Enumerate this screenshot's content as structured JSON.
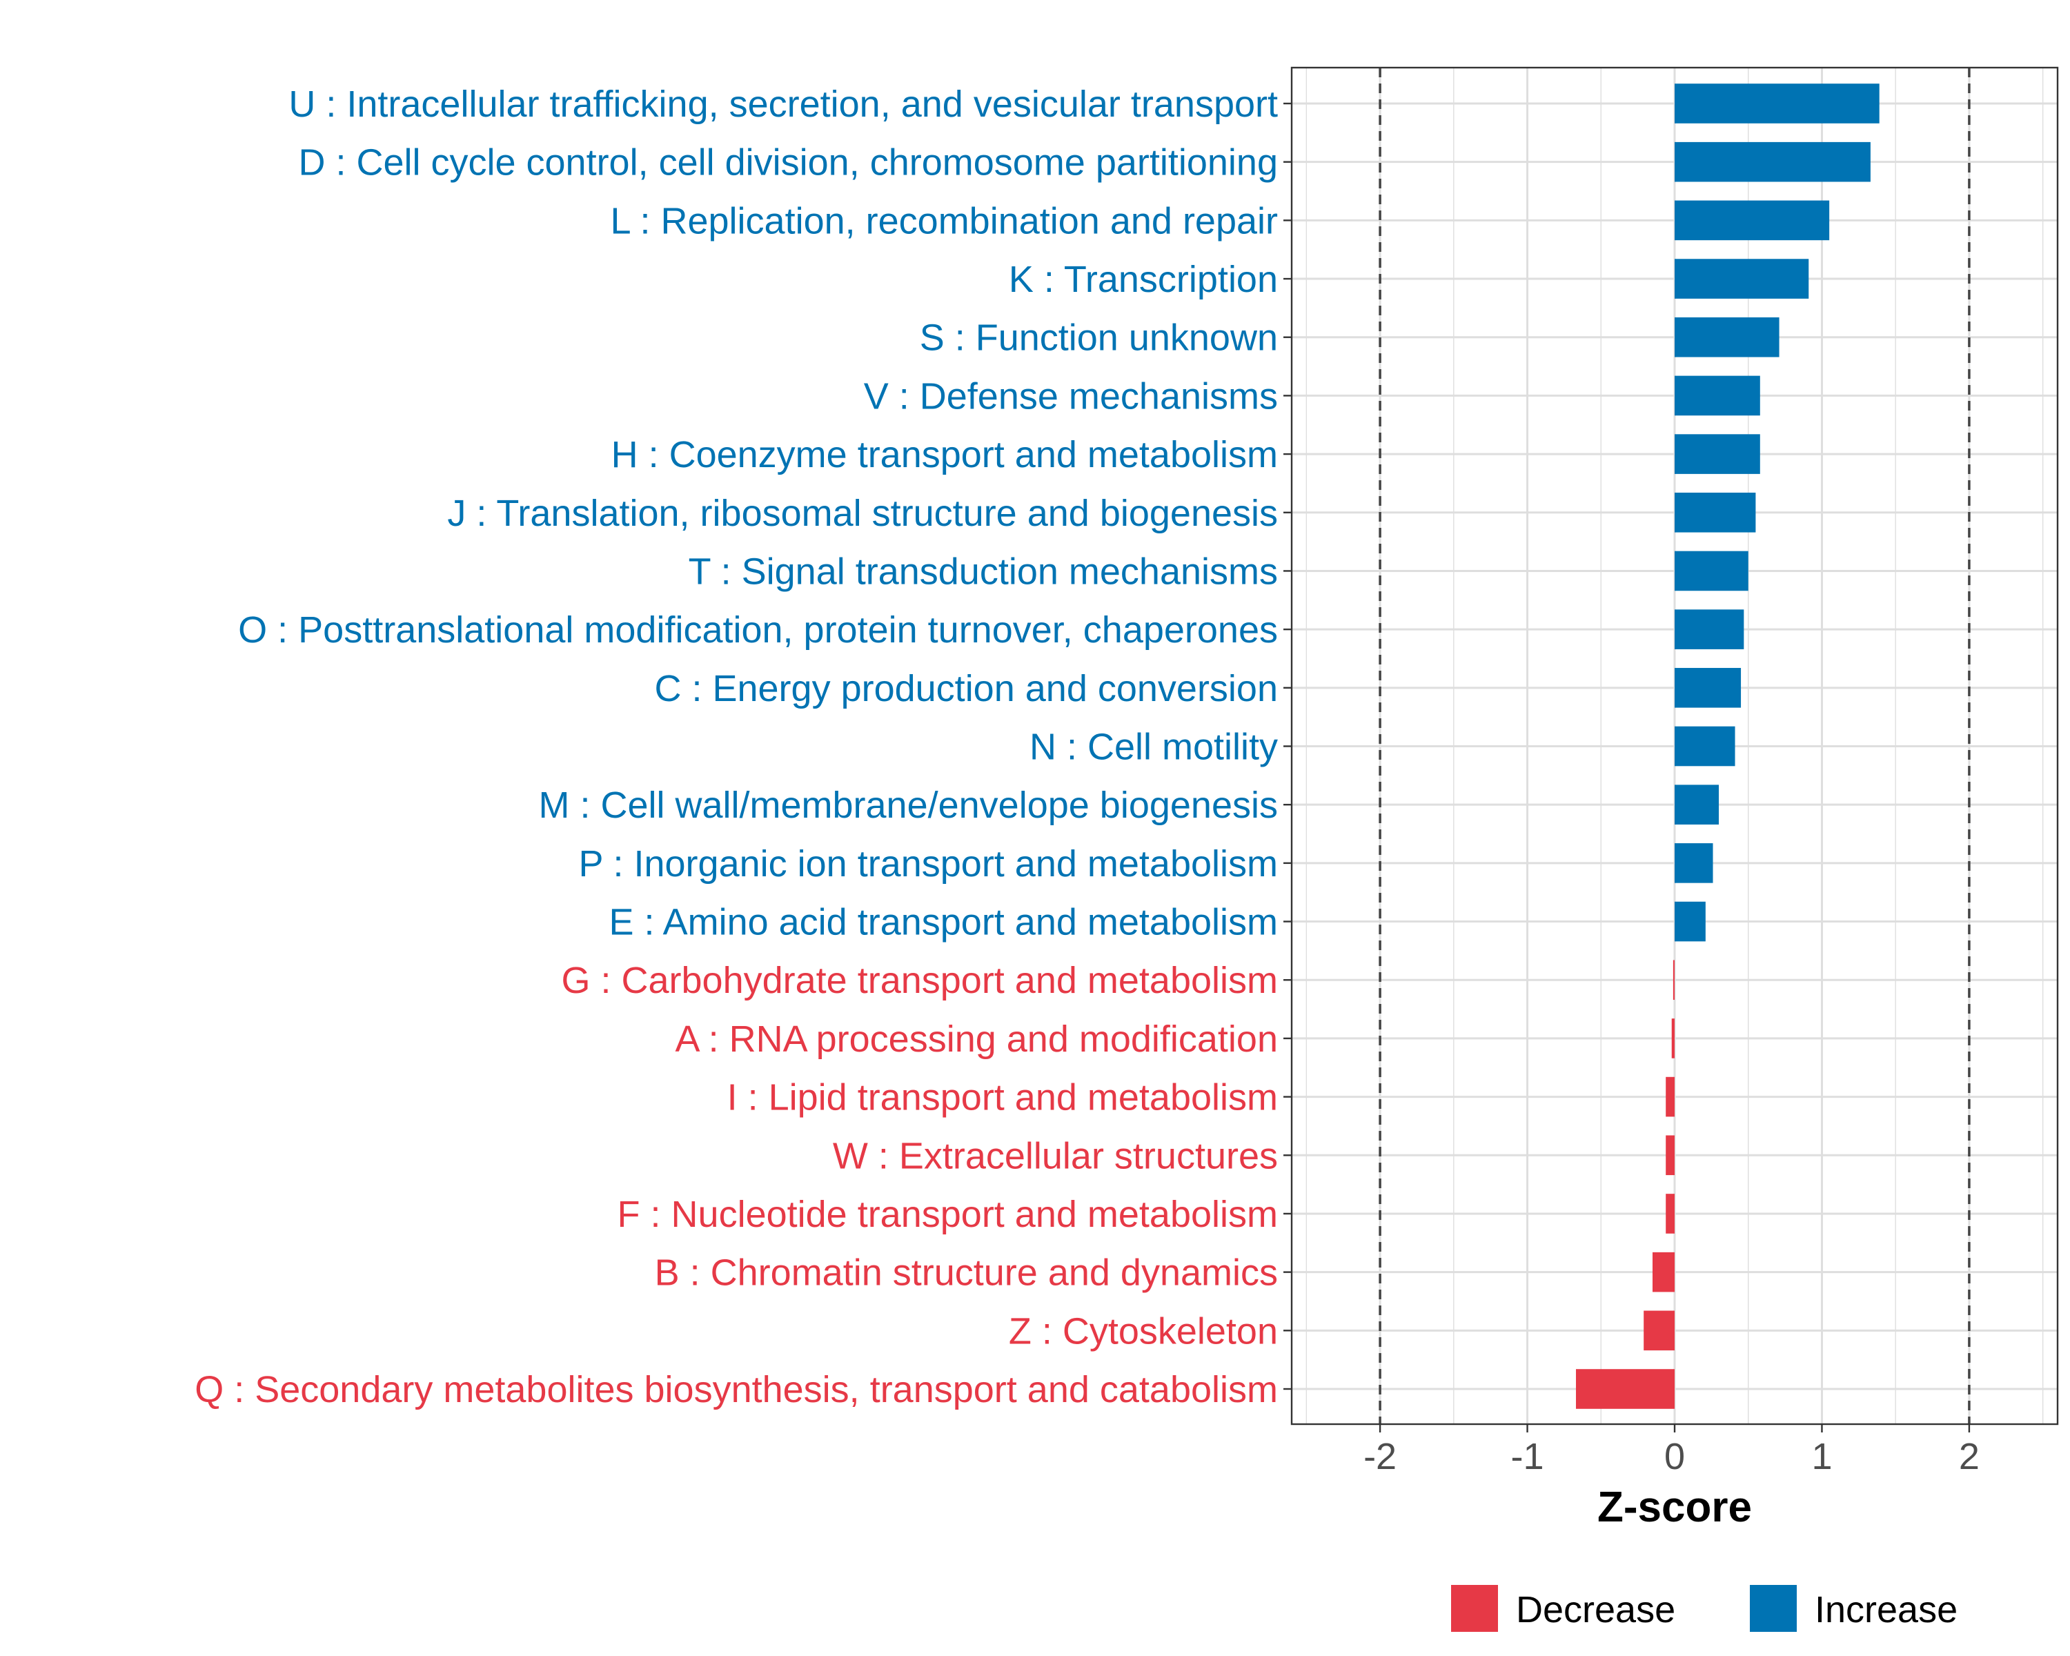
{
  "chart_data": {
    "type": "bar",
    "orientation": "horizontal",
    "title": "",
    "xlabel": "Z-score",
    "ylabel": "",
    "xlim": [
      -2.6,
      2.6
    ],
    "xticks": [
      -2,
      -1,
      0,
      1,
      2
    ],
    "xtick_labels": [
      "-2",
      "-1",
      "0",
      "1",
      "2"
    ],
    "reference_lines": [
      -2,
      2
    ],
    "grid": true,
    "colors": {
      "Increase": "#0073b3",
      "Decrease": "#e63946"
    },
    "legend": {
      "placement": "bottom",
      "entries": [
        {
          "label": "Decrease",
          "color": "#e63946"
        },
        {
          "label": "Increase",
          "color": "#0073b3"
        }
      ]
    },
    "categories": [
      "U : Intracellular trafficking, secretion, and vesicular transport",
      "D : Cell cycle control, cell division, chromosome partitioning",
      "L : Replication, recombination and repair",
      "K : Transcription",
      "S : Function unknown",
      "V : Defense mechanisms",
      "H : Coenzyme transport and metabolism",
      "J : Translation, ribosomal structure and biogenesis",
      "T : Signal transduction mechanisms",
      "O : Posttranslational modification, protein turnover, chaperones",
      "C : Energy production and conversion",
      "N : Cell motility",
      "M : Cell wall/membrane/envelope biogenesis",
      "P : Inorganic ion transport and metabolism",
      "E : Amino acid transport and metabolism",
      "G : Carbohydrate transport and metabolism",
      "A : RNA processing and modification",
      "I : Lipid transport and metabolism",
      "W : Extracellular structures",
      "F : Nucleotide transport and metabolism",
      "B : Chromatin structure and dynamics",
      "Z : Cytoskeleton",
      "Q : Secondary metabolites biosynthesis, transport and catabolism"
    ],
    "values": [
      1.39,
      1.33,
      1.05,
      0.91,
      0.71,
      0.58,
      0.58,
      0.55,
      0.5,
      0.47,
      0.45,
      0.41,
      0.3,
      0.26,
      0.21,
      -0.01,
      -0.02,
      -0.06,
      -0.06,
      -0.06,
      -0.15,
      -0.21,
      -0.67
    ],
    "direction": [
      "Increase",
      "Increase",
      "Increase",
      "Increase",
      "Increase",
      "Increase",
      "Increase",
      "Increase",
      "Increase",
      "Increase",
      "Increase",
      "Increase",
      "Increase",
      "Increase",
      "Increase",
      "Decrease",
      "Decrease",
      "Decrease",
      "Decrease",
      "Decrease",
      "Decrease",
      "Decrease",
      "Decrease"
    ]
  }
}
